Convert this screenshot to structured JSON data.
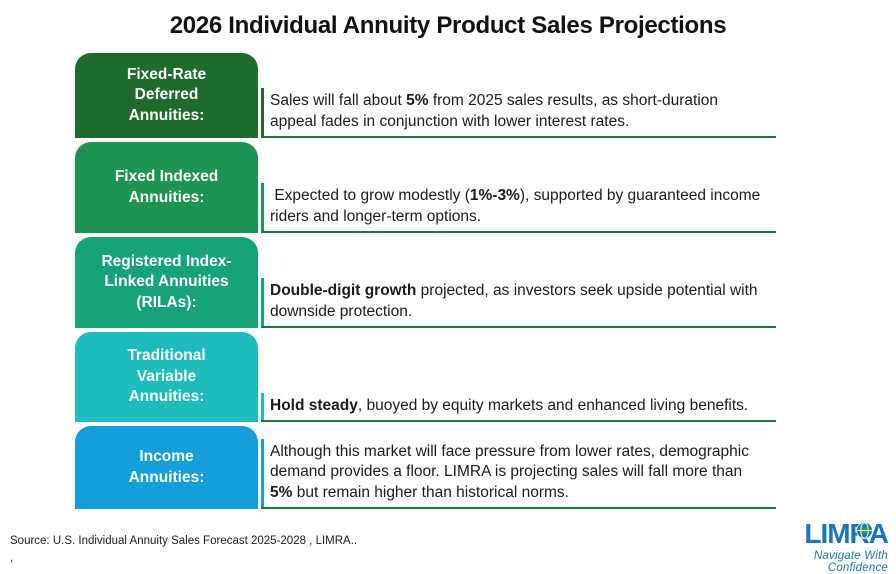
{
  "title": "2026 Individual Annuity Product Sales Projections",
  "separator_color": "#1F7A38",
  "rows": [
    {
      "label_lines": [
        "Fixed-Rate",
        "Deferred",
        "Annuities:"
      ],
      "box_color": "#1E6B2D",
      "text_segments": [
        {
          "text": "Sales will fall about ",
          "bold": false
        },
        {
          "text": "5%",
          "bold": true
        },
        {
          "text": " from 2025 sales results, as short-duration appeal fades in conjunction with lower interest rates.",
          "bold": false
        }
      ]
    },
    {
      "label_lines": [
        "Fixed Indexed",
        "Annuities:"
      ],
      "box_color": "#1F9351",
      "text_segments": [
        {
          "text": " Expected to grow modestly (",
          "bold": false
        },
        {
          "text": "1%-3%",
          "bold": true
        },
        {
          "text": "), supported by guaranteed income riders and longer-term options.",
          "bold": false
        }
      ]
    },
    {
      "label_lines": [
        "Registered Index-",
        "Linked Annuities",
        "(RILAs):"
      ],
      "box_color": "#17A37A",
      "text_segments": [
        {
          "text": "Double-digit growth",
          "bold": true
        },
        {
          "text": " projected, as investors seek upside potential with downside protection.",
          "bold": false
        }
      ]
    },
    {
      "label_lines": [
        "Traditional",
        "Variable",
        "Annuities:"
      ],
      "box_color": "#1EBCBD",
      "text_segments": [
        {
          "text": "Hold steady",
          "bold": true
        },
        {
          "text": ", buoyed by equity markets and enhanced living benefits.",
          "bold": false
        }
      ]
    },
    {
      "label_lines": [
        "Income",
        "Annuities:"
      ],
      "box_color": "#149FDA",
      "text_segments": [
        {
          "text": "Although this market will face pressure from lower rates, demographic demand provides a floor. LIMRA is projecting sales will fall more than ",
          "bold": false
        },
        {
          "text": "5%",
          "bold": true
        },
        {
          "text": " but remain higher than historical norms.",
          "bold": false
        }
      ]
    }
  ],
  "footer": {
    "source_line1": "Source: U.S. Individual Annuity Sales Forecast 2025-2028 , LIMRA..",
    "source_line2": ","
  },
  "logo": {
    "name": "LIMRA",
    "tagline": "Navigate With Confidence",
    "color": "#1C75BC"
  }
}
